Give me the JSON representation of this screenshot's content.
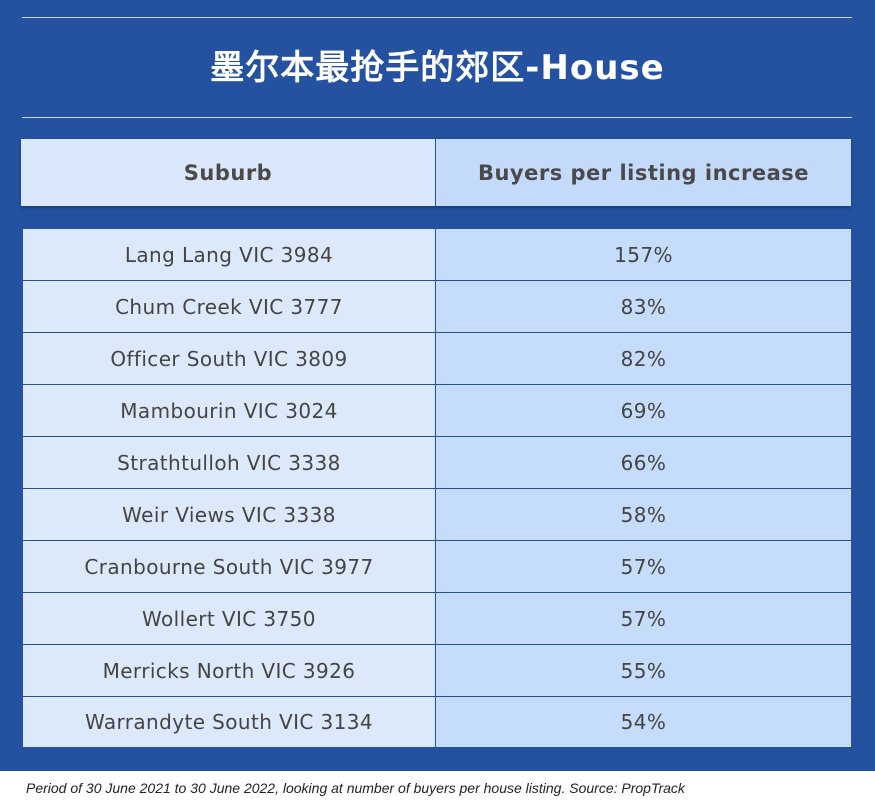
{
  "title": "墨尔本最抢手的郊区-House",
  "table": {
    "headers": [
      "Suburb",
      "Buyers per listing increase"
    ],
    "rows": [
      [
        "Lang Lang VIC 3984",
        "157%"
      ],
      [
        "Chum Creek VIC 3777",
        "83%"
      ],
      [
        "Officer South VIC 3809",
        "82%"
      ],
      [
        "Mambourin VIC 3024",
        "69%"
      ],
      [
        "Strathtulloh VIC 3338",
        "66%"
      ],
      [
        "Weir Views VIC 3338",
        "58%"
      ],
      [
        "Cranbourne South VIC 3977",
        "57%"
      ],
      [
        "Wollert VIC 3750",
        "57%"
      ],
      [
        "Merricks North VIC 3926",
        "55%"
      ],
      [
        "Warrandyte South VIC 3134",
        "54%"
      ]
    ]
  },
  "footnote": "Period of 30 June 2021 to 30 June 2022, looking at number of buyers per house listing. Source: PropTrack",
  "colors": {
    "panel": "#2451a0",
    "suburb_cell": "#dce9fb",
    "value_cell": "#c5dcfb",
    "title_text": "#ffffff"
  }
}
